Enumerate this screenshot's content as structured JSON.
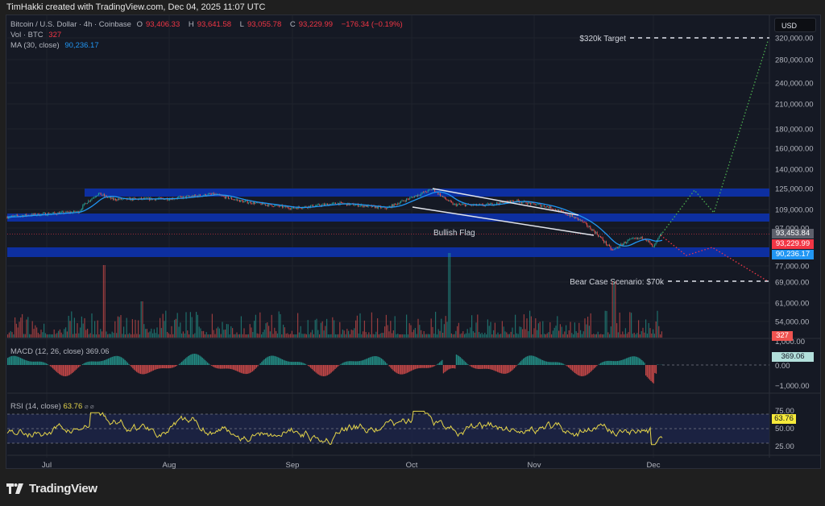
{
  "credit": "TimHakki created with TradingView.com, Dec 04, 2025 11:07 UTC",
  "header": {
    "symbol": "Bitcoin / U.S. Dollar · 4h · Coinbase",
    "open_label": "O",
    "open": "93,406.33",
    "high_label": "H",
    "high": "93,641.58",
    "low_label": "L",
    "low": "93,055.78",
    "close_label": "C",
    "close": "93,229.99",
    "change": "−176.34 (−0.19%)",
    "vol_label": "Vol · BTC",
    "vol": "327",
    "ma_label": "MA (30, close)",
    "ma": "90,236.17"
  },
  "currency": "USD",
  "price_tags": {
    "last": "93,453.84",
    "close": "93,229.99",
    "ma": "90,236.17",
    "volume": "327",
    "macd": "369.06",
    "rsi": "63.76"
  },
  "indicators": {
    "macd_label": "MACD (12, 26, close)",
    "macd_value": "369.06",
    "rsi_label": "RSI (14, close)",
    "rsi_value": "63.76",
    "rsi_extra": "⌀ ⌀"
  },
  "annotations": {
    "target": "$320k Target",
    "bear": "Bear Case Scenario: $70k",
    "flag": "Bullish Flag"
  },
  "brand": "TradingView",
  "colors": {
    "up": "#26a69a",
    "down": "#ef5350",
    "ma": "#2196f3",
    "zone": "#0d2fa0",
    "bull_path": "#4caf50",
    "bear_path": "#f23645",
    "rsi": "#e5d54a",
    "bg": "#151924"
  },
  "chart_data": [
    {
      "type": "line",
      "title": "Bitcoin / U.S. Dollar · 4h · Coinbase",
      "xlabel": "",
      "ylabel": "USD",
      "x_ticks": [
        "Jul",
        "Aug",
        "Sep",
        "Oct",
        "Nov",
        "Dec"
      ],
      "y_ticks": [
        54000,
        61000,
        69000,
        77000,
        97000,
        109000,
        125000,
        140000,
        160000,
        180000,
        210000,
        240000,
        280000,
        320000
      ],
      "y_scale": "log",
      "series": [
        {
          "name": "BTC close (approx.)",
          "x": [
            "Jun 20",
            "Jul 1",
            "Jul 10",
            "Jul 14",
            "Aug 1",
            "Aug 14",
            "Aug 31",
            "Sep 15",
            "Sep 30",
            "Oct 6",
            "Oct 10",
            "Oct 20",
            "Oct 28",
            "Nov 4",
            "Nov 14",
            "Nov 21",
            "Nov 26",
            "Dec 1",
            "Dec 4"
          ],
          "values": [
            104000,
            107000,
            111000,
            121000,
            116000,
            123000,
            108000,
            115000,
            113000,
            125000,
            112000,
            110000,
            114000,
            104000,
            96000,
            84000,
            90000,
            86000,
            93230
          ]
        },
        {
          "name": "MA (30, close)",
          "last": 90236.17
        }
      ],
      "zones": [
        {
          "name": "Resistance zone",
          "from": 119000,
          "to": 126000
        },
        {
          "name": "Mid zone",
          "from": 103000,
          "to": 108500
        },
        {
          "name": "Support zone",
          "from": 82000,
          "to": 87000
        }
      ],
      "projections": [
        {
          "name": "Bull path",
          "points": [
            93400,
            125000,
            106000,
            320000
          ]
        },
        {
          "name": "Bear path",
          "points": [
            93400,
            85000,
            89000,
            70000
          ]
        }
      ],
      "annotations": [
        "$320k Target",
        "Bear Case Scenario: $70k",
        "Bullish Flag"
      ],
      "last_price": 93229.99
    },
    {
      "type": "bar",
      "title": "Vol · BTC",
      "last": 327
    },
    {
      "type": "bar",
      "title": "MACD (12, 26, close)",
      "y_ticks": [
        -1000,
        0,
        1000
      ],
      "last": 369.06
    },
    {
      "type": "line",
      "title": "RSI (14, close)",
      "y_ticks": [
        25,
        50,
        75
      ],
      "band": [
        30,
        70
      ],
      "last": 63.76
    }
  ]
}
